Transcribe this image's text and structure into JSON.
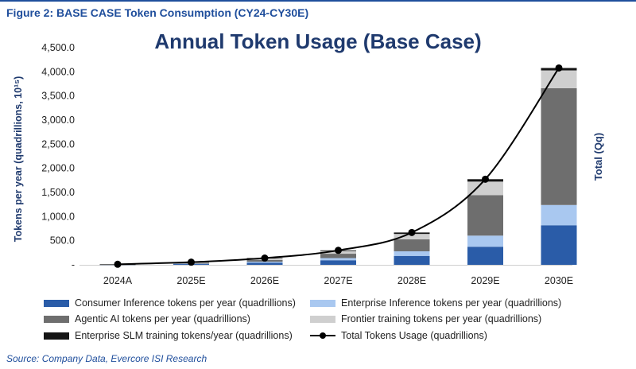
{
  "figure_label": "Figure 2: BASE CASE Token Consumption (CY24-CY30E)",
  "source": "Source: Company Data, Evercore ISI Research",
  "colors": {
    "consumer": "#2a5ca8",
    "enterprise": "#a9c8f0",
    "agentic": "#6e6e6e",
    "frontier": "#cfcfcf",
    "slm": "#151515",
    "total_line": "#000000",
    "header": "#1f4e9c",
    "title": "#1f3a6e"
  },
  "chart_data": {
    "type": "bar",
    "stacked": true,
    "title": "Annual Token Usage (Base Case)",
    "ylabel": "Tokens per year (quadrillions, 10¹⁵)",
    "ylabel_right": "Total (Qq)",
    "xlabel": "",
    "ylim": [
      0,
      4500
    ],
    "yticks": [
      "4,500.0",
      "4,000.0",
      "3,500.0",
      "3,000.0",
      "2,500.0",
      "2,000.0",
      "1,500.0",
      "1,000.0",
      "500.0",
      "-"
    ],
    "categories": [
      "2024A",
      "2025E",
      "2026E",
      "2027E",
      "2028E",
      "2029E",
      "2030E"
    ],
    "series": [
      {
        "name": "Consumer Inference tokens per year (quadrillions)",
        "key": "consumer",
        "values": [
          3,
          18,
          45,
          95,
          185,
          375,
          820
        ]
      },
      {
        "name": "Enterprise Inference tokens per year (quadrillions)",
        "key": "enterprise",
        "values": [
          1,
          7,
          20,
          45,
          95,
          230,
          420
        ]
      },
      {
        "name": "Agentic AI tokens per year (quadrillions)",
        "key": "agentic",
        "values": [
          1,
          10,
          35,
          90,
          250,
          840,
          2420
        ]
      },
      {
        "name": "Frontier training tokens per year (quadrillions)",
        "key": "frontier",
        "values": [
          5,
          15,
          30,
          55,
          110,
          280,
          370
        ]
      },
      {
        "name": "Enterprise SLM training tokens/year (quadrillions)",
        "key": "slm",
        "values": [
          2,
          5,
          10,
          15,
          30,
          50,
          50
        ]
      }
    ],
    "line": {
      "name": "Total Tokens Usage (quadrillions)",
      "values": [
        12,
        55,
        140,
        300,
        670,
        1775,
        4080
      ]
    },
    "grid": false,
    "legend_position": "bottom"
  }
}
